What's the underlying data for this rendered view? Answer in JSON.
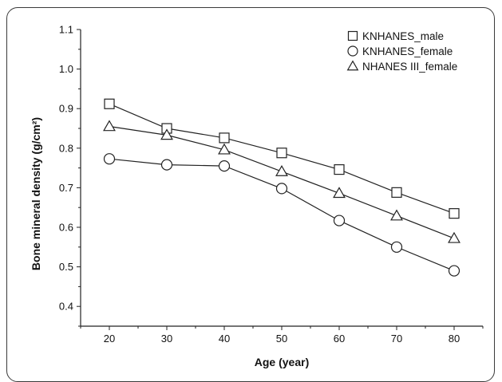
{
  "chart_data": {
    "type": "line",
    "xlabel": "Age (year)",
    "ylabel": "Bone mineral density (g/cm²)",
    "x": [
      20,
      30,
      40,
      50,
      60,
      70,
      80
    ],
    "xlim": [
      15,
      85
    ],
    "ylim": [
      0.35,
      1.1
    ],
    "xticks": [
      20,
      30,
      40,
      50,
      60,
      70,
      80
    ],
    "yticks": [
      0.4,
      0.5,
      0.6,
      0.7,
      0.8,
      0.9,
      1.0,
      1.1
    ],
    "ytick_labels": [
      "0.4",
      "0.5",
      "0.6",
      "0.7",
      "0.8",
      "0.9",
      "1.0",
      "1.1"
    ],
    "grid": false,
    "legend_position": "top-right",
    "series": [
      {
        "name": "KNHANES_male",
        "marker": "square",
        "values": [
          0.912,
          0.85,
          0.826,
          0.788,
          0.746,
          0.688,
          0.635
        ]
      },
      {
        "name": "KNHANES_female",
        "marker": "circle",
        "values": [
          0.773,
          0.758,
          0.755,
          0.698,
          0.617,
          0.55,
          0.49
        ]
      },
      {
        "name": "NHANES III_female",
        "marker": "triangle",
        "values": [
          0.855,
          0.833,
          0.796,
          0.741,
          0.686,
          0.629,
          0.572
        ]
      }
    ]
  }
}
